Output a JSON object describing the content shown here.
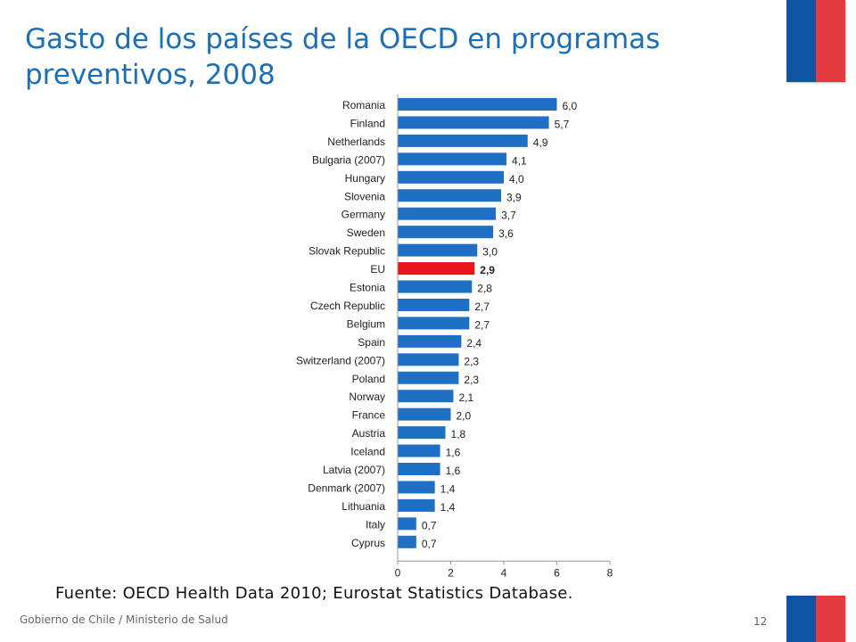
{
  "title": "Gasto de los países de la OECD en programas preventivos, 2008",
  "source": "Fuente: OECD Health Data 2010; Eurostat Statistics Database.",
  "footer": "Gobierno de Chile / Ministerio de Salud",
  "page_number": "12",
  "colors": {
    "title": "#1a6fb8",
    "bar": "#1f6fc4",
    "highlight_bar": "#e8131b",
    "flag_blue": "#0f55a3",
    "flag_red": "#e23a3f"
  },
  "chart_data": {
    "type": "bar",
    "orientation": "horizontal",
    "title": "",
    "xlabel": "",
    "ylabel": "",
    "xlim": [
      0,
      8
    ],
    "xticks": [
      0,
      2,
      4,
      6,
      8
    ],
    "grid": false,
    "highlight": "EU",
    "categories": [
      "Romania",
      "Finland",
      "Netherlands",
      "Bulgaria (2007)",
      "Hungary",
      "Slovenia",
      "Germany",
      "Sweden",
      "Slovak Republic",
      "EU",
      "Estonia",
      "Czech Republic",
      "Belgium",
      "Spain",
      "Switzerland (2007)",
      "Poland",
      "Norway",
      "France",
      "Austria",
      "Iceland",
      "Latvia (2007)",
      "Denmark (2007)",
      "Lithuania",
      "Italy",
      "Cyprus"
    ],
    "values": [
      6.0,
      5.7,
      4.9,
      4.1,
      4.0,
      3.9,
      3.7,
      3.6,
      3.0,
      2.9,
      2.8,
      2.7,
      2.7,
      2.4,
      2.3,
      2.3,
      2.1,
      2.0,
      1.8,
      1.6,
      1.6,
      1.4,
      1.4,
      0.7,
      0.7
    ],
    "value_labels": [
      "6,0",
      "5,7",
      "4,9",
      "4,1",
      "4,0",
      "3,9",
      "3,7",
      "3,6",
      "3,0",
      "2,9",
      "2,8",
      "2,7",
      "2,7",
      "2,4",
      "2,3",
      "2,3",
      "2,1",
      "2,0",
      "1,8",
      "1,6",
      "1,6",
      "1,4",
      "1,4",
      "0,7",
      "0,7"
    ]
  }
}
